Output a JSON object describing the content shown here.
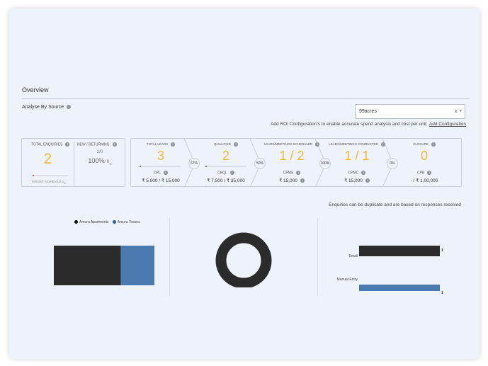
{
  "overview": {
    "title": "Overview",
    "analyse_label": "Analyse By Source",
    "source_select": {
      "value": "99acres",
      "clear_icon": "close-icon",
      "caret_icon": "chevron-down-icon"
    },
    "roi_text": "Add ROI Configuration's to enable accurate spend analysis and cost per unit",
    "roi_link": "Add Configuration"
  },
  "enquiries": {
    "total_label": "TOTAL ENQUIRIES",
    "total_value": "2",
    "target_label": "TARGET ACHIEVED 0",
    "target_pct_symbol": "%",
    "target_progress": 0.0,
    "new_returning_label": "NEW / RETURNING",
    "new_returning_value": "2/0",
    "pct_main": "100%",
    "pct_sub": "/ 0",
    "pct_sub_symbol": "%"
  },
  "funnel": {
    "stages": [
      {
        "label": "TOTAL LEADS",
        "value": "3",
        "sub_label": "CPL",
        "amount": "₹ 5,000 / ₹ 15,000",
        "bar_progress": 0.03
      },
      {
        "label": "QUALIFIED",
        "value": "2",
        "sub_label": "CPQL",
        "amount": "₹ 7,500 / ₹ 35,000",
        "bar_progress": 0.03
      },
      {
        "label": "LEADS/MEETINGS SCHEDULED",
        "value": "1 / 2",
        "sub_label": "CPMS",
        "amount": "₹ 15,000"
      },
      {
        "label": "LEADS/MEETINGS CONDUCTED",
        "value": "1 / 1",
        "sub_label": "CPMC",
        "amount": "₹ 15,000"
      },
      {
        "label": "CLOSURE",
        "value": "0",
        "sub_label": "CPB",
        "amount": "- / ₹ 1,00,000"
      }
    ],
    "conversions": [
      "67%",
      "50%",
      "100%",
      "0%"
    ]
  },
  "note": "Enquiries can be duplicate and are based on responses received",
  "colors": {
    "dark": "#2b2b2b",
    "blue": "#4a7aaf",
    "accent": "#f0b83a"
  },
  "chart_data": [
    {
      "type": "bar",
      "orientation": "horizontal-stacked",
      "categories": [
        ""
      ],
      "series": [
        {
          "name": "Amura Apartments",
          "values": [
            1
          ],
          "color": "#2b2b2b"
        },
        {
          "name": "Amura Towers",
          "values": [
            0.5
          ],
          "color": "#4a7aaf"
        }
      ],
      "legend": "top"
    },
    {
      "type": "pie",
      "style": "donut",
      "slices": [
        {
          "label": "",
          "value": 1,
          "color": "#2b2b2b"
        }
      ]
    },
    {
      "type": "bar",
      "orientation": "horizontal",
      "categories": [
        "Email",
        "Manual Entry"
      ],
      "values": [
        1,
        1
      ],
      "data_labels": [
        "1",
        "1"
      ],
      "colors": [
        "#2b2b2b",
        "#4a7aaf"
      ]
    }
  ]
}
